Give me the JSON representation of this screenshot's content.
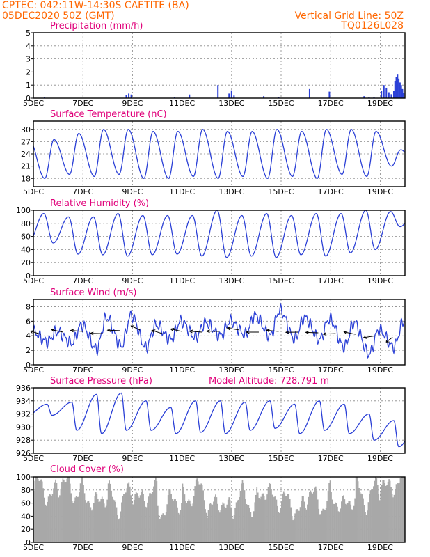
{
  "header": {
    "line1": "CPTEC:   042:11W-14:30S   CAETITE (BA)",
    "line2": "05DEC2020 50Z (GMT)",
    "right1": "Vertical Grid Line: 50Z",
    "right2": "TQ0126L028"
  },
  "colors": {
    "header": "#ff6600",
    "title": "#e0007a",
    "line": "#2a3fd6",
    "cloud": "#a8a8a8",
    "wind": "#000000"
  },
  "x_ticks": [
    "5DEC",
    "7DEC",
    "9DEC",
    "11DEC",
    "13DEC",
    "15DEC",
    "17DEC",
    "19DEC"
  ],
  "chart_data": [
    {
      "type": "bar",
      "title": "Precipitation (mm/h)",
      "xlabel": "",
      "ylabel": "",
      "ylim": [
        0,
        5
      ],
      "yticks": [
        "0",
        "1",
        "2",
        "3",
        "4",
        "5"
      ],
      "x_range_days": [
        5,
        20
      ],
      "values": [
        {
          "day": 5.45,
          "v": 0.06
        },
        {
          "day": 8.75,
          "v": 0.22
        },
        {
          "day": 8.85,
          "v": 0.35
        },
        {
          "day": 8.95,
          "v": 0.28
        },
        {
          "day": 10.7,
          "v": 0.08
        },
        {
          "day": 11.3,
          "v": 0.28
        },
        {
          "day": 12.45,
          "v": 1.0
        },
        {
          "day": 12.9,
          "v": 0.35
        },
        {
          "day": 13.0,
          "v": 0.6
        },
        {
          "day": 13.1,
          "v": 0.2
        },
        {
          "day": 14.3,
          "v": 0.15
        },
        {
          "day": 14.9,
          "v": 0.08
        },
        {
          "day": 16.15,
          "v": 0.7
        },
        {
          "day": 16.95,
          "v": 0.5
        },
        {
          "day": 18.35,
          "v": 0.15
        },
        {
          "day": 18.55,
          "v": 0.08
        },
        {
          "day": 18.75,
          "v": 0.1
        },
        {
          "day": 19.05,
          "v": 0.55
        },
        {
          "day": 19.15,
          "v": 1.0
        },
        {
          "day": 19.25,
          "v": 0.8
        },
        {
          "day": 19.35,
          "v": 0.45
        },
        {
          "day": 19.45,
          "v": 0.3
        },
        {
          "day": 19.55,
          "v": 0.55
        },
        {
          "day": 19.6,
          "v": 1.3
        },
        {
          "day": 19.65,
          "v": 1.6
        },
        {
          "day": 19.7,
          "v": 1.8
        },
        {
          "day": 19.75,
          "v": 1.5
        },
        {
          "day": 19.8,
          "v": 1.2
        },
        {
          "day": 19.85,
          "v": 1.0
        },
        {
          "day": 19.9,
          "v": 0.7
        },
        {
          "day": 19.95,
          "v": 0.4
        }
      ]
    },
    {
      "type": "line",
      "title": "Surface Temperature (nC)",
      "xlabel": "",
      "ylabel": "",
      "ylim": [
        16,
        32
      ],
      "yticks": [
        "18",
        "21",
        "24",
        "27",
        "30"
      ],
      "ytick_values": [
        18,
        21,
        24,
        27,
        30
      ],
      "x_range_days": [
        5,
        20
      ],
      "min_v": [
        18,
        19,
        18.5,
        19,
        18,
        18,
        18.5,
        18,
        18.5,
        18,
        18.5,
        18,
        19,
        18.5,
        21
      ],
      "max_v": [
        27.5,
        29,
        30,
        30,
        29.5,
        29.5,
        30,
        29.5,
        29.5,
        30,
        29.5,
        30,
        30,
        29.5,
        25
      ],
      "min_phase": 0.46,
      "max_phase": 0.83
    },
    {
      "type": "line",
      "title": "Relative Humidity (%)",
      "xlabel": "",
      "ylabel": "",
      "ylim": [
        0,
        100
      ],
      "yticks": [
        "0",
        "20",
        "40",
        "60",
        "80",
        "100"
      ],
      "ytick_values": [
        0,
        20,
        40,
        60,
        80,
        100
      ],
      "x_range_days": [
        5,
        20
      ],
      "min_v": [
        50,
        33,
        32,
        30,
        32,
        33,
        30,
        28,
        30,
        28,
        32,
        30,
        35,
        40,
        75
      ],
      "max_v": [
        95,
        90,
        90,
        95,
        92,
        92,
        92,
        100,
        92,
        95,
        92,
        95,
        95,
        100,
        98
      ],
      "min_phase": 0.8,
      "max_phase": 0.42
    },
    {
      "type": "line",
      "title": "Surface Wind (m/s)",
      "xlabel": "",
      "ylabel": "",
      "ylim": [
        0,
        9
      ],
      "yticks": [
        "0",
        "2",
        "4",
        "6",
        "8"
      ],
      "ytick_values": [
        0,
        2,
        4,
        6,
        8
      ],
      "x_range_days": [
        5,
        20
      ],
      "min_v": [
        3.2,
        3.0,
        2.2,
        2.6,
        2.4,
        3.5,
        3.8,
        4.0,
        4.2,
        4.0,
        3.6,
        3.5,
        2.5,
        1.5,
        2.5
      ],
      "max_v": [
        4.6,
        5.5,
        6.5,
        6.8,
        5.5,
        6.0,
        5.8,
        6.0,
        6.8,
        7.5,
        6.5,
        6.3,
        5.8,
        4.8,
        6.0
      ],
      "min_phase": 0.55,
      "max_phase": 0.95,
      "arrows": [
        {
          "day": 5.3,
          "dir_deg": 215,
          "speed": 4.2
        },
        {
          "day": 6.2,
          "dir_deg": 205,
          "speed": 4.5
        },
        {
          "day": 7.0,
          "dir_deg": 190,
          "speed": 4.6
        },
        {
          "day": 7.8,
          "dir_deg": 182,
          "speed": 4.3
        },
        {
          "day": 8.5,
          "dir_deg": 185,
          "speed": 4.7
        },
        {
          "day": 9.3,
          "dir_deg": 225,
          "speed": 4.8
        },
        {
          "day": 10.2,
          "dir_deg": 215,
          "speed": 4.3
        },
        {
          "day": 11.0,
          "dir_deg": 205,
          "speed": 4.6
        },
        {
          "day": 11.8,
          "dir_deg": 190,
          "speed": 4.5
        },
        {
          "day": 12.5,
          "dir_deg": 182,
          "speed": 4.6
        },
        {
          "day": 13.3,
          "dir_deg": 200,
          "speed": 4.8
        },
        {
          "day": 14.1,
          "dir_deg": 180,
          "speed": 4.5
        },
        {
          "day": 14.9,
          "dir_deg": 192,
          "speed": 4.6
        },
        {
          "day": 15.7,
          "dir_deg": 178,
          "speed": 4.5
        },
        {
          "day": 16.5,
          "dir_deg": 185,
          "speed": 4.4
        },
        {
          "day": 17.2,
          "dir_deg": 175,
          "speed": 4.3
        },
        {
          "day": 18.0,
          "dir_deg": 205,
          "speed": 4.2
        },
        {
          "day": 18.8,
          "dir_deg": 160,
          "speed": 4.0
        },
        {
          "day": 19.5,
          "dir_deg": 120,
          "speed": 3.8
        }
      ]
    },
    {
      "type": "line",
      "title": "Surface Pressure (hPa)",
      "subtitle": "Model Altitude: 728.791 m",
      "xlabel": "",
      "ylabel": "",
      "ylim": [
        926,
        936
      ],
      "yticks": [
        "926",
        "928",
        "930",
        "932",
        "934",
        "936"
      ],
      "ytick_values": [
        926,
        928,
        930,
        932,
        934,
        936
      ],
      "x_range_days": [
        5,
        20
      ],
      "min_v": [
        931.8,
        929.5,
        929.0,
        929.5,
        929.5,
        929.0,
        929.2,
        929.0,
        929.5,
        929.8,
        929.0,
        929.5,
        929.0,
        928.0,
        927.0
      ],
      "max_v": [
        933.5,
        933.8,
        935.0,
        935.2,
        934.0,
        933.0,
        934.0,
        934.0,
        933.8,
        934.0,
        933.5,
        934.0,
        933.5,
        932.0,
        931.0
      ],
      "min_phase": 0.75,
      "max_phase": 0.55
    },
    {
      "type": "bar",
      "title": "Cloud Cover (%)",
      "xlabel": "",
      "ylabel": "",
      "ylim": [
        0,
        100
      ],
      "yticks": [
        "0",
        "20",
        "40",
        "60",
        "80",
        "100"
      ],
      "ytick_values": [
        0,
        20,
        40,
        60,
        80,
        100
      ],
      "x_range_days": [
        5,
        20
      ],
      "day_mean": [
        85,
        90,
        72,
        72,
        78,
        65,
        80,
        62,
        70,
        78,
        62,
        72,
        68,
        80,
        95
      ]
    }
  ]
}
